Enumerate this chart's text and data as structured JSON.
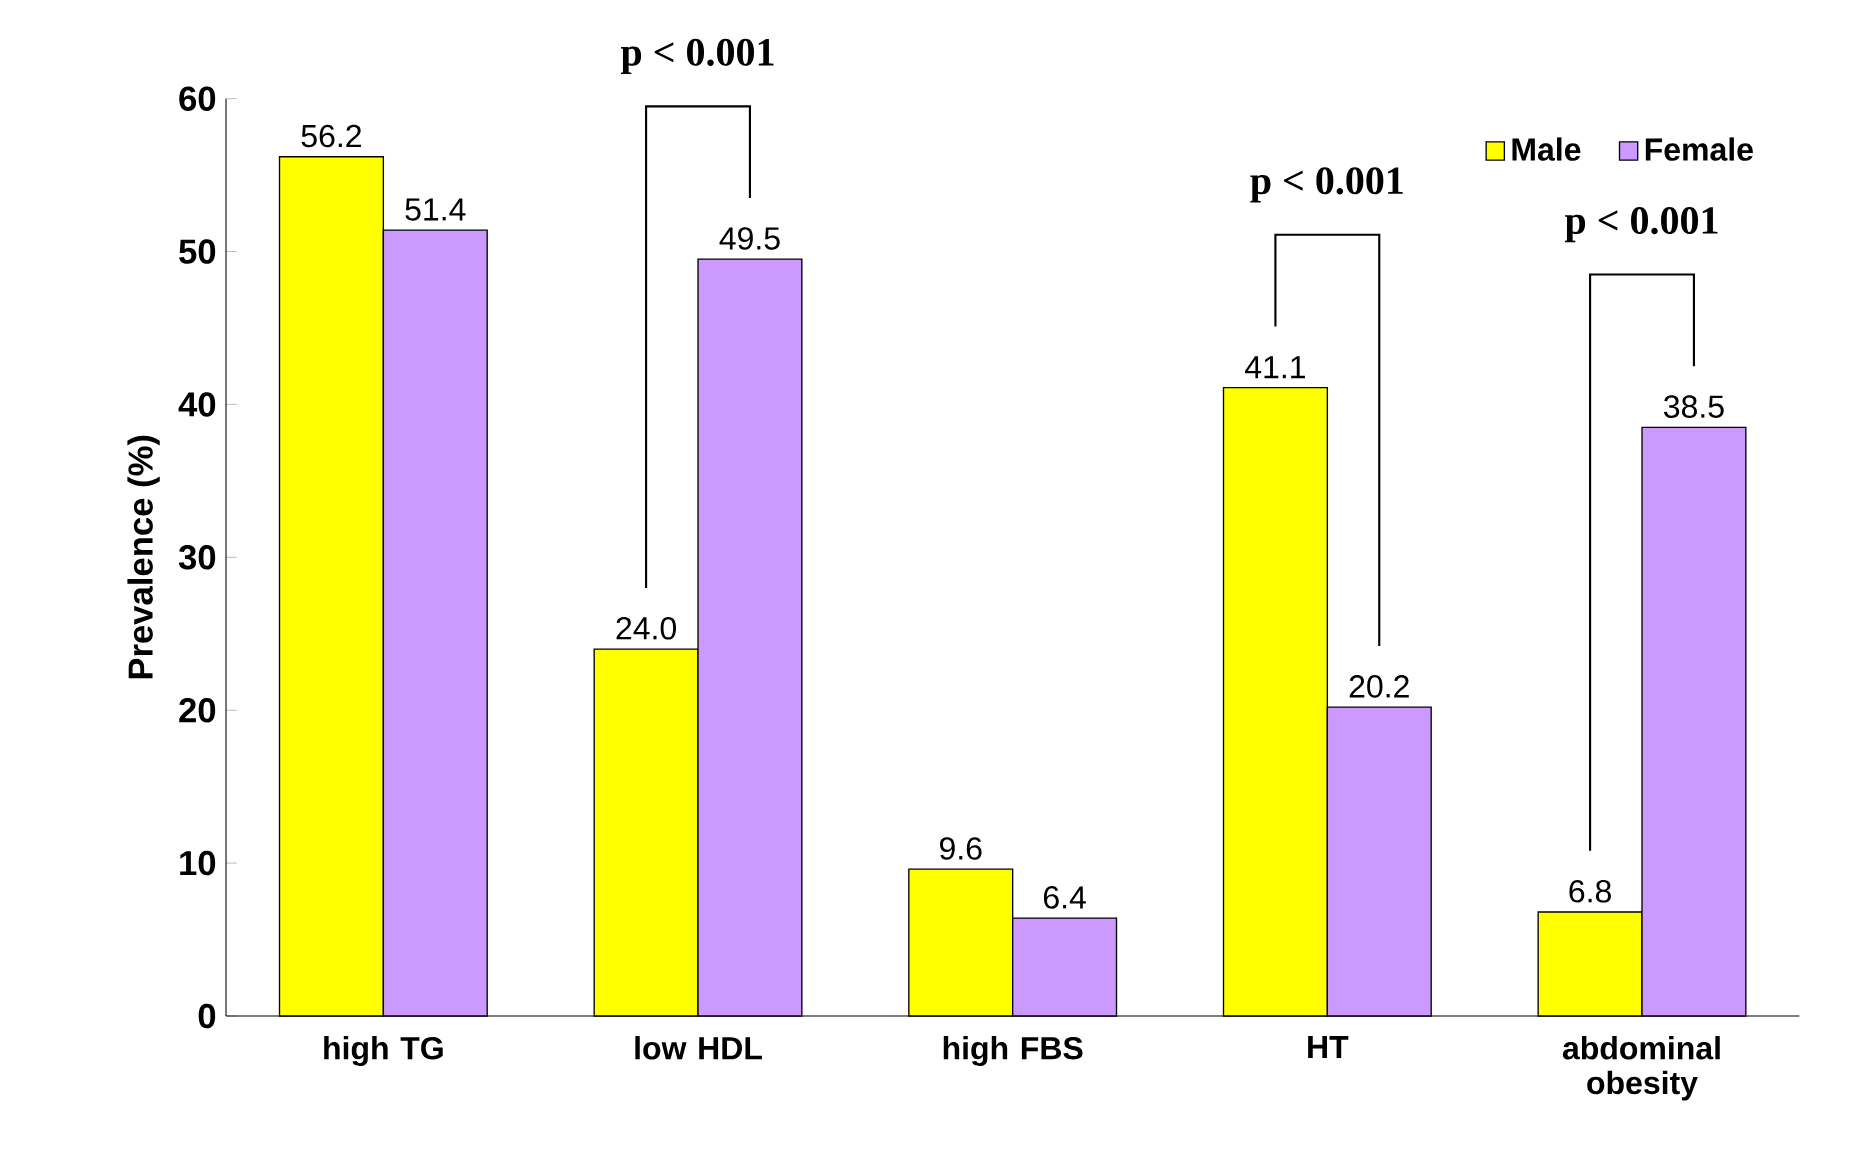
{
  "chart_data": {
    "type": "bar",
    "categories": [
      "high TG",
      "low HDL",
      "high FBS",
      "HT",
      "abdominal obesity"
    ],
    "ylabel": "Prevalence (%)",
    "ylim": [
      0,
      60
    ],
    "yticks": [
      0,
      10,
      20,
      30,
      40,
      50,
      60
    ],
    "legend": "top right",
    "series": [
      {
        "name": "Male",
        "color": "#ffff00",
        "values": [
          56.2,
          24.0,
          9.6,
          41.1,
          6.8
        ],
        "value_labels": [
          "56.2",
          "24.0",
          "9.6",
          "41.1",
          "6.8"
        ]
      },
      {
        "name": "Female",
        "color": "#cc99ff",
        "values": [
          51.4,
          49.5,
          6.4,
          20.2,
          38.5
        ],
        "value_labels": [
          "51.4",
          "49.5",
          "6.4",
          "20.2",
          "38.5"
        ]
      }
    ],
    "annotations": [
      "p < 0.001",
      "p < 0.001",
      "p < 0.001"
    ]
  }
}
